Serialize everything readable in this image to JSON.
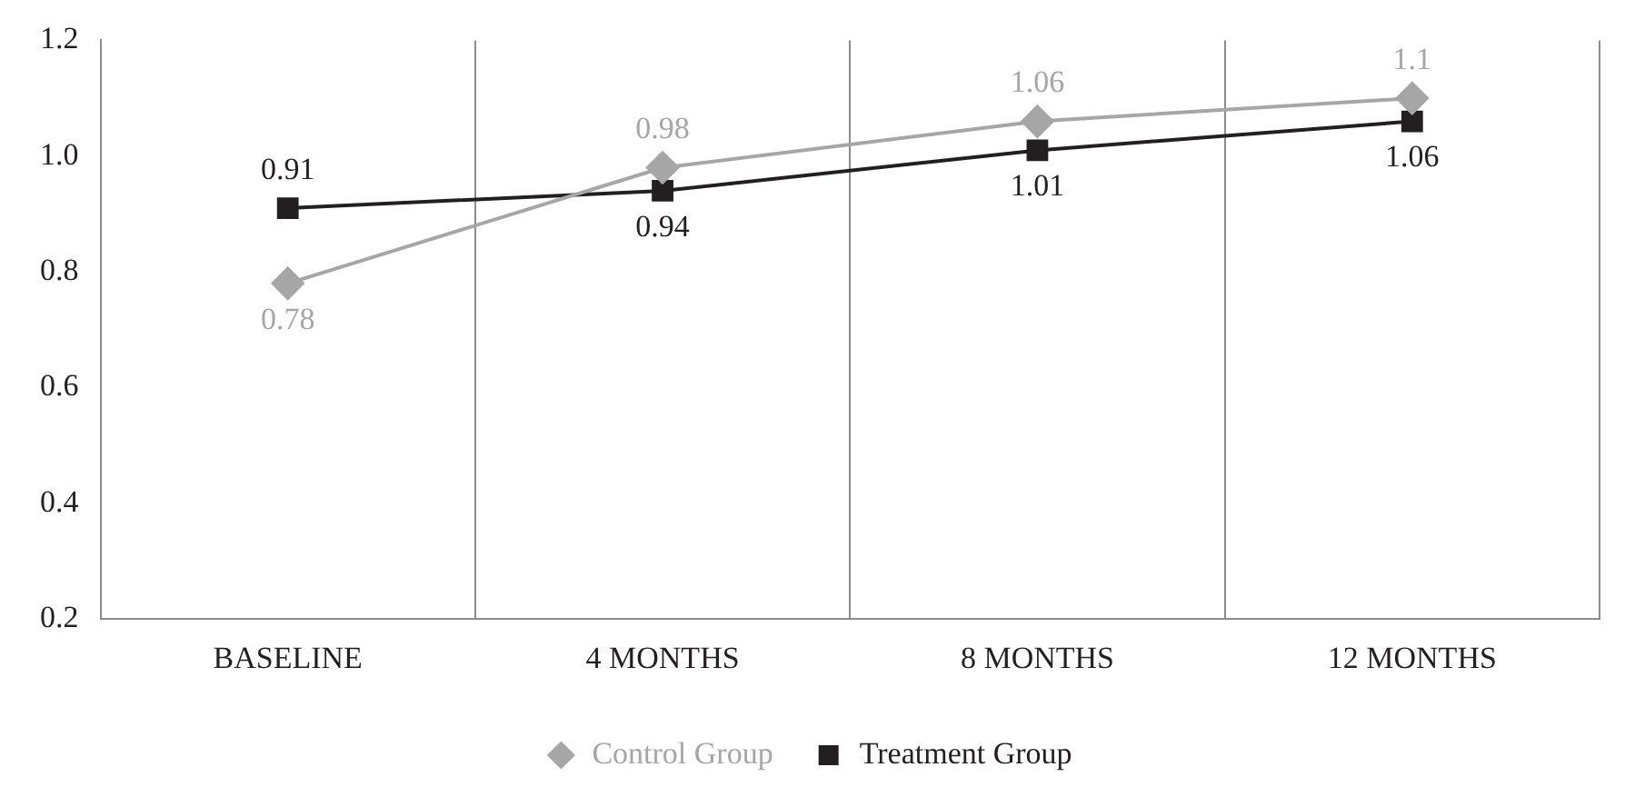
{
  "chart_data": {
    "type": "line",
    "categories": [
      "BASELINE",
      "4 MONTHS",
      "8 MONTHS",
      "12 MONTHS"
    ],
    "series": [
      {
        "name": "Control Group",
        "color": "#a6a6a6",
        "marker": "diamond",
        "values": [
          0.78,
          0.98,
          1.06,
          1.1
        ]
      },
      {
        "name": "Treatment Group",
        "color": "#231f20",
        "marker": "square",
        "values": [
          0.91,
          0.94,
          1.01,
          1.06
        ]
      }
    ],
    "ylim": [
      0.2,
      1.2
    ],
    "yticks": [
      0.2,
      0.4,
      0.6,
      0.8,
      {
        "value": 1,
        "label": "1.0"
      },
      1.2
    ],
    "grid": "x",
    "legend": "bottom",
    "data_labels": true,
    "line_style": "solid"
  }
}
